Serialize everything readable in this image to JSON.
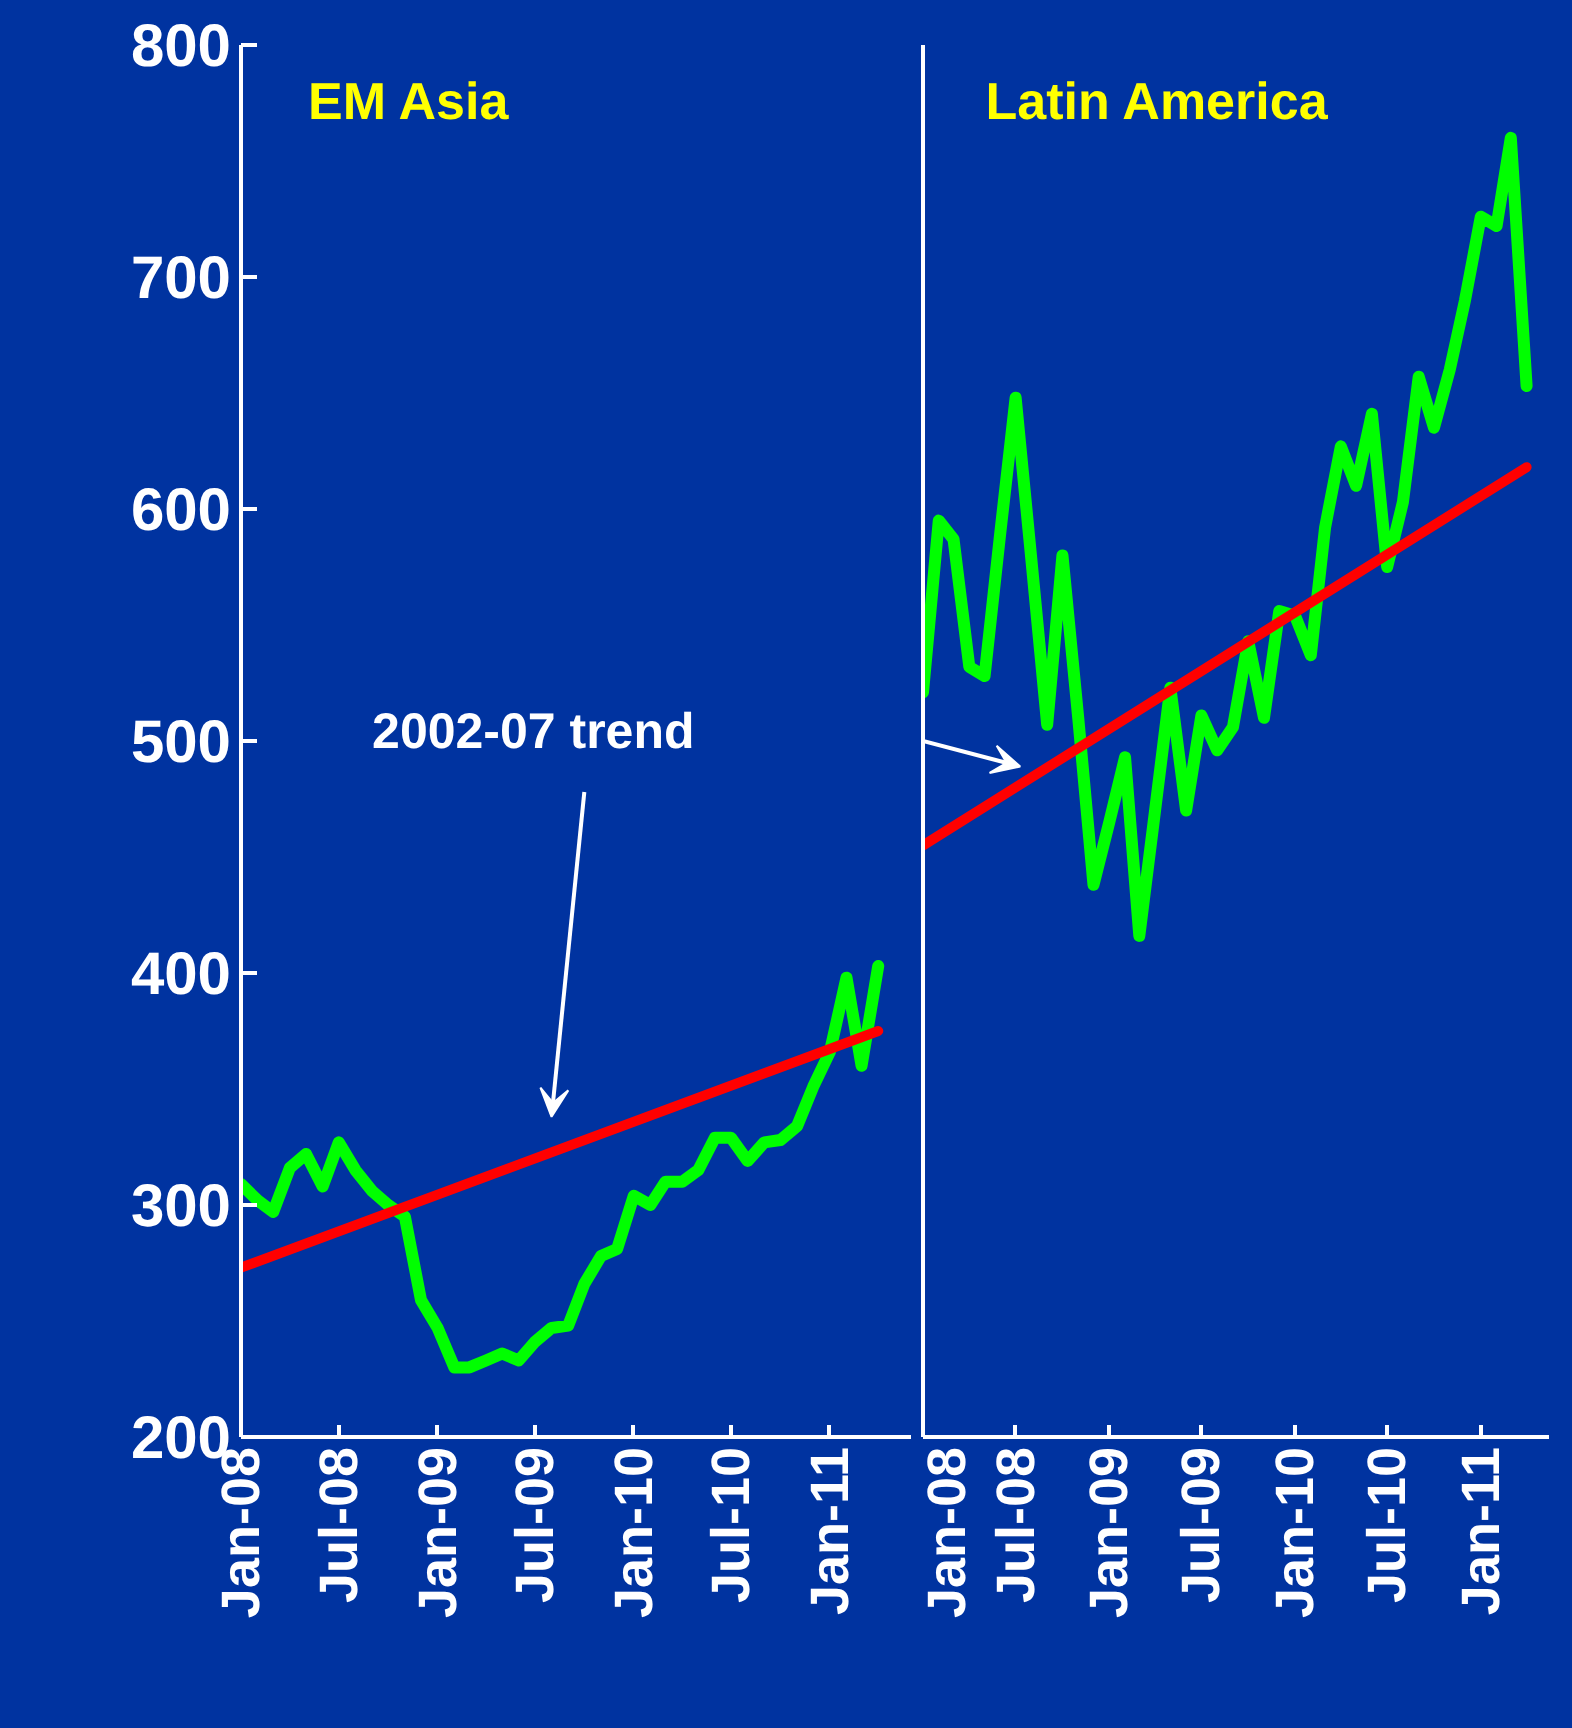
{
  "chart_data": [
    {
      "type": "line",
      "title": "EM Asia",
      "annotations": [
        "2002-07 trend"
      ],
      "xlim": [
        "2008-01",
        "2011-06"
      ],
      "ylim": [
        200,
        800
      ],
      "xticks": [
        {
          "value": "2008-01",
          "label": "Jan-08"
        },
        {
          "value": "2008-07",
          "label": "Jul-08"
        },
        {
          "value": "2009-01",
          "label": "Jan-09"
        },
        {
          "value": "2009-07",
          "label": "Jul-09"
        },
        {
          "value": "2010-01",
          "label": "Jan-10"
        },
        {
          "value": "2010-07",
          "label": "Jul-10"
        },
        {
          "value": "2011-01",
          "label": "Jan-11"
        }
      ],
      "yticks": [
        200,
        300,
        400,
        500,
        600,
        700,
        800
      ],
      "grid": false,
      "line_style": "solid",
      "x": [
        "2008-01",
        "2008-02",
        "2008-03",
        "2008-04",
        "2008-05",
        "2008-06",
        "2008-07",
        "2008-08",
        "2008-09",
        "2008-10",
        "2008-11",
        "2008-12",
        "2009-01",
        "2009-02",
        "2009-03",
        "2009-04",
        "2009-05",
        "2009-06",
        "2009-07",
        "2009-08",
        "2009-09",
        "2009-10",
        "2009-11",
        "2009-12",
        "2010-01",
        "2010-02",
        "2010-03",
        "2010-04",
        "2010-05",
        "2010-06",
        "2010-07",
        "2010-08",
        "2010-09",
        "2010-10",
        "2010-11",
        "2010-12",
        "2011-01",
        "2011-02",
        "2011-03",
        "2011-04"
      ],
      "series": [
        {
          "color": "#00ff00",
          "values": [
            309,
            302,
            297,
            316,
            322,
            308,
            327,
            315,
            306,
            300,
            295,
            259,
            247,
            230,
            230,
            233,
            236,
            233,
            241,
            247,
            248,
            266,
            278,
            281,
            304,
            300,
            310,
            310,
            315,
            329,
            329,
            319,
            327,
            328,
            334,
            351,
            366,
            398,
            360,
            403
          ]
        },
        {
          "color": "#ff0000",
          "x": [
            "2008-01",
            "2011-04"
          ],
          "values": [
            273,
            375
          ]
        }
      ]
    },
    {
      "type": "line",
      "title": "Latin America",
      "xlim": [
        "2008-01",
        "2011-05-15"
      ],
      "ylim": [
        200,
        800
      ],
      "tick_labels": "x",
      "xticks": [
        {
          "value": "2008-01",
          "label": "Jan-08"
        },
        {
          "value": "2008-07",
          "label": "Jul-08"
        },
        {
          "value": "2009-01",
          "label": "Jan-09"
        },
        {
          "value": "2009-07",
          "label": "Jul-09"
        },
        {
          "value": "2010-01",
          "label": "Jan-10"
        },
        {
          "value": "2010-07",
          "label": "Jul-10"
        },
        {
          "value": "2011-01",
          "label": "Jan-11"
        }
      ],
      "yticks": [
        200,
        300,
        400,
        500,
        600,
        700,
        800
      ],
      "grid": false,
      "line_style": "solid",
      "x": [
        "2008-01",
        "2008-02",
        "2008-03",
        "2008-04",
        "2008-05",
        "2008-06",
        "2008-07",
        "2008-08",
        "2008-09",
        "2008-10",
        "2008-11",
        "2008-12",
        "2009-01",
        "2009-02",
        "2009-03",
        "2009-04",
        "2009-05",
        "2009-06",
        "2009-07",
        "2009-08",
        "2009-09",
        "2009-10",
        "2009-11",
        "2009-12",
        "2010-01",
        "2010-02",
        "2010-03",
        "2010-04",
        "2010-05",
        "2010-06",
        "2010-07",
        "2010-08",
        "2010-09",
        "2010-10",
        "2010-11",
        "2010-12",
        "2011-01",
        "2011-02",
        "2011-03",
        "2011-04"
      ],
      "series": [
        {
          "color": "#00ff00",
          "values": [
            521,
            595,
            587,
            532,
            528,
            590,
            648,
            578,
            507,
            580,
            510,
            438,
            465,
            493,
            416,
            470,
            523,
            470,
            511,
            496,
            506,
            543,
            510,
            556,
            554,
            537,
            592,
            627,
            610,
            641,
            575,
            603,
            657,
            635,
            660,
            690,
            726,
            722,
            760,
            653
          ]
        },
        {
          "color": "#ff0000",
          "x": [
            "2008-01",
            "2011-04"
          ],
          "values": [
            455,
            618
          ]
        }
      ]
    }
  ]
}
